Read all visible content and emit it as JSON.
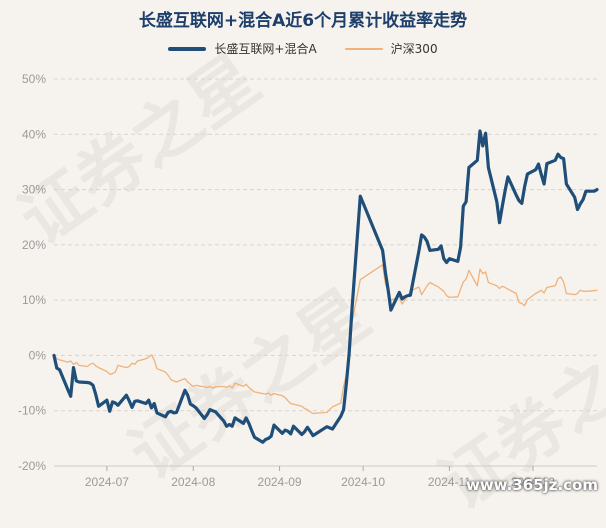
{
  "chart_data": {
    "type": "line",
    "title": "长盛互联网+混合A近6个月累计收益率走势",
    "xlabel": "",
    "ylabel": "",
    "ylim": [
      -20,
      50
    ],
    "yticks": [
      -20,
      -10,
      0,
      10,
      20,
      30,
      40,
      50
    ],
    "ytick_labels": [
      "-20%",
      "-10%",
      "0%",
      "10%",
      "20%",
      "30%",
      "40%",
      "50%"
    ],
    "xlim": [
      "2024-06-12",
      "2024-12-24"
    ],
    "xticks": [
      {
        "date": "2024-07-01",
        "label": "2024-07"
      },
      {
        "date": "2024-08-01",
        "label": "2024-08"
      },
      {
        "date": "2024-09-01",
        "label": "2024-09"
      },
      {
        "date": "2024-10-01",
        "label": "2024-10"
      },
      {
        "date": "2024-11-01",
        "label": "2024-11"
      },
      {
        "date": "2024-12-01",
        "label": "2024-12"
      }
    ],
    "grid": "horizontal-dashed",
    "legend": "top-center",
    "series": [
      {
        "name": "长盛互联网+混合A",
        "color": "#1f4e79",
        "points": [
          [
            "2024-06-12",
            0
          ],
          [
            "2024-06-13",
            -2.3
          ],
          [
            "2024-06-14",
            -2.6
          ],
          [
            "2024-06-17",
            -6.2
          ],
          [
            "2024-06-18",
            -7.4
          ],
          [
            "2024-06-19",
            -2.2
          ],
          [
            "2024-06-20",
            -4.6
          ],
          [
            "2024-06-21",
            -4.8
          ],
          [
            "2024-06-24",
            -4.9
          ],
          [
            "2024-06-25",
            -5.0
          ],
          [
            "2024-06-26",
            -5.4
          ],
          [
            "2024-06-27",
            -7.1
          ],
          [
            "2024-06-28",
            -9.2
          ],
          [
            "2024-07-01",
            -8.1
          ],
          [
            "2024-07-02",
            -10.1
          ],
          [
            "2024-07-03",
            -8.4
          ],
          [
            "2024-07-04",
            -8.6
          ],
          [
            "2024-07-05",
            -9.0
          ],
          [
            "2024-07-08",
            -7.2
          ],
          [
            "2024-07-09",
            -8.2
          ],
          [
            "2024-07-10",
            -9.4
          ],
          [
            "2024-07-11",
            -8.3
          ],
          [
            "2024-07-12",
            -8.2
          ],
          [
            "2024-07-15",
            -8.7
          ],
          [
            "2024-07-16",
            -8.1
          ],
          [
            "2024-07-17",
            -9.5
          ],
          [
            "2024-07-18",
            -8.7
          ],
          [
            "2024-07-19",
            -10.4
          ],
          [
            "2024-07-22",
            -11.1
          ],
          [
            "2024-07-23",
            -10.3
          ],
          [
            "2024-07-24",
            -10.1
          ],
          [
            "2024-07-25",
            -10.4
          ],
          [
            "2024-07-26",
            -10.3
          ],
          [
            "2024-07-29",
            -6.3
          ],
          [
            "2024-07-30",
            -7.2
          ],
          [
            "2024-07-31",
            -8.8
          ],
          [
            "2024-08-01",
            -9.1
          ],
          [
            "2024-08-02",
            -9.5
          ],
          [
            "2024-08-05",
            -11.4
          ],
          [
            "2024-08-06",
            -10.7
          ],
          [
            "2024-08-07",
            -9.8
          ],
          [
            "2024-08-08",
            -10.0
          ],
          [
            "2024-08-09",
            -10.2
          ],
          [
            "2024-08-12",
            -11.9
          ],
          [
            "2024-08-13",
            -12.8
          ],
          [
            "2024-08-14",
            -12.5
          ],
          [
            "2024-08-15",
            -12.8
          ],
          [
            "2024-08-16",
            -11.3
          ],
          [
            "2024-08-19",
            -12.3
          ],
          [
            "2024-08-20",
            -11.3
          ],
          [
            "2024-08-21",
            -12.3
          ],
          [
            "2024-08-22",
            -13.6
          ],
          [
            "2024-08-23",
            -14.8
          ],
          [
            "2024-08-26",
            -15.7
          ],
          [
            "2024-08-27",
            -15.2
          ],
          [
            "2024-08-28",
            -15.0
          ],
          [
            "2024-08-29",
            -14.6
          ],
          [
            "2024-08-30",
            -12.6
          ],
          [
            "2024-09-02",
            -14.1
          ],
          [
            "2024-09-03",
            -13.5
          ],
          [
            "2024-09-04",
            -13.7
          ],
          [
            "2024-09-05",
            -14.2
          ],
          [
            "2024-09-06",
            -12.8
          ],
          [
            "2024-09-09",
            -14.3
          ],
          [
            "2024-09-10",
            -13.8
          ],
          [
            "2024-09-11",
            -13.0
          ],
          [
            "2024-09-12",
            -13.7
          ],
          [
            "2024-09-13",
            -14.5
          ],
          [
            "2024-09-18",
            -12.9
          ],
          [
            "2024-09-19",
            -13.1
          ],
          [
            "2024-09-20",
            -13.3
          ],
          [
            "2024-09-23",
            -11.0
          ],
          [
            "2024-09-24",
            -9.8
          ],
          [
            "2024-09-25",
            -5.0
          ],
          [
            "2024-09-26",
            0.5
          ],
          [
            "2024-09-27",
            8.4
          ],
          [
            "2024-09-30",
            28.8
          ],
          [
            "2024-10-08",
            19.0
          ],
          [
            "2024-10-09",
            15.0
          ],
          [
            "2024-10-10",
            11.8
          ],
          [
            "2024-10-11",
            8.2
          ],
          [
            "2024-10-14",
            11.4
          ],
          [
            "2024-10-15",
            10.2
          ],
          [
            "2024-10-16",
            10.6
          ],
          [
            "2024-10-17",
            10.8
          ],
          [
            "2024-10-18",
            10.9
          ],
          [
            "2024-10-21",
            18.8
          ],
          [
            "2024-10-22",
            21.8
          ],
          [
            "2024-10-23",
            21.4
          ],
          [
            "2024-10-24",
            20.6
          ],
          [
            "2024-10-25",
            19.0
          ],
          [
            "2024-10-28",
            19.2
          ],
          [
            "2024-10-29",
            19.8
          ],
          [
            "2024-10-30",
            17.5
          ],
          [
            "2024-10-31",
            16.8
          ],
          [
            "2024-11-01",
            17.5
          ],
          [
            "2024-11-04",
            17.0
          ],
          [
            "2024-11-05",
            19.6
          ],
          [
            "2024-11-06",
            27.0
          ],
          [
            "2024-11-07",
            27.8
          ],
          [
            "2024-11-08",
            34.0
          ],
          [
            "2024-11-11",
            35.3
          ],
          [
            "2024-11-12",
            40.6
          ],
          [
            "2024-11-13",
            37.9
          ],
          [
            "2024-11-14",
            40.2
          ],
          [
            "2024-11-15",
            34.0
          ],
          [
            "2024-11-18",
            27.8
          ],
          [
            "2024-11-19",
            24.0
          ],
          [
            "2024-11-20",
            27.0
          ],
          [
            "2024-11-21",
            29.8
          ],
          [
            "2024-11-22",
            32.3
          ],
          [
            "2024-11-25",
            29.0
          ],
          [
            "2024-11-26",
            28.0
          ],
          [
            "2024-11-27",
            27.5
          ],
          [
            "2024-11-28",
            30.5
          ],
          [
            "2024-11-29",
            32.8
          ],
          [
            "2024-12-02",
            33.6
          ],
          [
            "2024-12-03",
            34.6
          ],
          [
            "2024-12-04",
            32.7
          ],
          [
            "2024-12-05",
            31.0
          ],
          [
            "2024-12-06",
            34.7
          ],
          [
            "2024-12-09",
            35.3
          ],
          [
            "2024-12-10",
            36.4
          ],
          [
            "2024-12-11",
            35.8
          ],
          [
            "2024-12-12",
            35.6
          ],
          [
            "2024-12-13",
            31.0
          ],
          [
            "2024-12-16",
            28.6
          ],
          [
            "2024-12-17",
            26.4
          ],
          [
            "2024-12-18",
            27.4
          ],
          [
            "2024-12-19",
            28.2
          ],
          [
            "2024-12-20",
            29.7
          ],
          [
            "2024-12-23",
            29.7
          ],
          [
            "2024-12-24",
            30.0
          ]
        ]
      },
      {
        "name": "沪深300",
        "color": "#f0b27a",
        "points": [
          [
            "2024-06-12",
            0
          ],
          [
            "2024-06-13",
            -0.6
          ],
          [
            "2024-06-14",
            -0.8
          ],
          [
            "2024-06-17",
            -1.2
          ],
          [
            "2024-06-18",
            -1.0
          ],
          [
            "2024-06-19",
            -1.6
          ],
          [
            "2024-06-20",
            -1.3
          ],
          [
            "2024-06-21",
            -1.8
          ],
          [
            "2024-06-24",
            -2.0
          ],
          [
            "2024-06-25",
            -1.6
          ],
          [
            "2024-06-26",
            -1.4
          ],
          [
            "2024-06-27",
            -1.9
          ],
          [
            "2024-06-28",
            -2.2
          ],
          [
            "2024-07-01",
            -2.9
          ],
          [
            "2024-07-02",
            -3.4
          ],
          [
            "2024-07-03",
            -3.3
          ],
          [
            "2024-07-04",
            -3.0
          ],
          [
            "2024-07-05",
            -1.8
          ],
          [
            "2024-07-08",
            -2.2
          ],
          [
            "2024-07-09",
            -2.0
          ],
          [
            "2024-07-10",
            -1.4
          ],
          [
            "2024-07-11",
            -1.6
          ],
          [
            "2024-07-12",
            -1.0
          ],
          [
            "2024-07-15",
            -0.6
          ],
          [
            "2024-07-16",
            -0.3
          ],
          [
            "2024-07-17",
            0.1
          ],
          [
            "2024-07-18",
            -0.8
          ],
          [
            "2024-07-19",
            -2.4
          ],
          [
            "2024-07-22",
            -3.0
          ],
          [
            "2024-07-23",
            -3.6
          ],
          [
            "2024-07-24",
            -4.4
          ],
          [
            "2024-07-25",
            -4.6
          ],
          [
            "2024-07-26",
            -4.8
          ],
          [
            "2024-07-29",
            -4.2
          ],
          [
            "2024-07-30",
            -4.8
          ],
          [
            "2024-07-31",
            -5.2
          ],
          [
            "2024-08-01",
            -5.6
          ],
          [
            "2024-08-02",
            -5.4
          ],
          [
            "2024-08-05",
            -5.7
          ],
          [
            "2024-08-06",
            -5.8
          ],
          [
            "2024-08-07",
            -5.6
          ],
          [
            "2024-08-08",
            -5.9
          ],
          [
            "2024-08-09",
            -5.7
          ],
          [
            "2024-08-12",
            -5.6
          ],
          [
            "2024-08-13",
            -5.8
          ],
          [
            "2024-08-14",
            -5.5
          ],
          [
            "2024-08-15",
            -5.9
          ],
          [
            "2024-08-16",
            -5.0
          ],
          [
            "2024-08-19",
            -5.6
          ],
          [
            "2024-08-20",
            -5.2
          ],
          [
            "2024-08-21",
            -5.8
          ],
          [
            "2024-08-22",
            -6.2
          ],
          [
            "2024-08-23",
            -6.6
          ],
          [
            "2024-08-26",
            -6.9
          ],
          [
            "2024-08-27",
            -7.0
          ],
          [
            "2024-08-28",
            -6.8
          ],
          [
            "2024-08-29",
            -7.2
          ],
          [
            "2024-08-30",
            -6.9
          ],
          [
            "2024-09-02",
            -7.3
          ],
          [
            "2024-09-03",
            -7.6
          ],
          [
            "2024-09-04",
            -8.2
          ],
          [
            "2024-09-05",
            -8.7
          ],
          [
            "2024-09-06",
            -8.8
          ],
          [
            "2024-09-09",
            -9.2
          ],
          [
            "2024-09-10",
            -9.6
          ],
          [
            "2024-09-11",
            -9.8
          ],
          [
            "2024-09-12",
            -10.2
          ],
          [
            "2024-09-13",
            -10.5
          ],
          [
            "2024-09-18",
            -10.3
          ],
          [
            "2024-09-19",
            -9.8
          ],
          [
            "2024-09-20",
            -9.3
          ],
          [
            "2024-09-23",
            -8.6
          ],
          [
            "2024-09-24",
            -5.6
          ],
          [
            "2024-09-25",
            -3.4
          ],
          [
            "2024-09-26",
            0.5
          ],
          [
            "2024-09-27",
            6.0
          ],
          [
            "2024-09-30",
            13.7
          ],
          [
            "2024-10-08",
            16.4
          ],
          [
            "2024-10-09",
            13.0
          ],
          [
            "2024-10-10",
            11.5
          ],
          [
            "2024-10-11",
            10.0
          ],
          [
            "2024-10-14",
            10.6
          ],
          [
            "2024-10-15",
            9.3
          ],
          [
            "2024-10-16",
            10.0
          ],
          [
            "2024-10-17",
            10.8
          ],
          [
            "2024-10-18",
            11.6
          ],
          [
            "2024-10-21",
            12.4
          ],
          [
            "2024-10-22",
            11.0
          ],
          [
            "2024-10-23",
            11.8
          ],
          [
            "2024-10-24",
            12.6
          ],
          [
            "2024-10-25",
            13.2
          ],
          [
            "2024-10-28",
            12.4
          ],
          [
            "2024-10-29",
            12.0
          ],
          [
            "2024-10-30",
            11.6
          ],
          [
            "2024-10-31",
            10.8
          ],
          [
            "2024-11-01",
            10.5
          ],
          [
            "2024-11-04",
            10.6
          ],
          [
            "2024-11-05",
            12.0
          ],
          [
            "2024-11-06",
            13.3
          ],
          [
            "2024-11-07",
            13.8
          ],
          [
            "2024-11-08",
            15.4
          ],
          [
            "2024-11-11",
            12.6
          ],
          [
            "2024-11-12",
            15.6
          ],
          [
            "2024-11-13",
            14.8
          ],
          [
            "2024-11-14",
            15.1
          ],
          [
            "2024-11-15",
            13.2
          ],
          [
            "2024-11-18",
            12.6
          ],
          [
            "2024-11-19",
            12.1
          ],
          [
            "2024-11-20",
            12.5
          ],
          [
            "2024-11-21",
            12.3
          ],
          [
            "2024-11-22",
            12.0
          ],
          [
            "2024-11-25",
            11.2
          ],
          [
            "2024-11-26",
            9.6
          ],
          [
            "2024-11-27",
            9.4
          ],
          [
            "2024-11-28",
            9.0
          ],
          [
            "2024-11-29",
            10.1
          ],
          [
            "2024-12-02",
            11.2
          ],
          [
            "2024-12-03",
            11.5
          ],
          [
            "2024-12-04",
            11.8
          ],
          [
            "2024-12-05",
            11.3
          ],
          [
            "2024-12-06",
            12.3
          ],
          [
            "2024-12-09",
            12.6
          ],
          [
            "2024-12-10",
            13.9
          ],
          [
            "2024-12-11",
            14.2
          ],
          [
            "2024-12-12",
            13.3
          ],
          [
            "2024-12-13",
            11.2
          ],
          [
            "2024-12-16",
            11.0
          ],
          [
            "2024-12-17",
            11.2
          ],
          [
            "2024-12-18",
            11.8
          ],
          [
            "2024-12-19",
            11.6
          ],
          [
            "2024-12-20",
            11.6
          ],
          [
            "2024-12-23",
            11.7
          ],
          [
            "2024-12-24",
            11.8
          ]
        ]
      }
    ]
  },
  "watermark": {
    "text": "证券之星"
  },
  "site_mark": {
    "text": "www.365jz.com"
  }
}
